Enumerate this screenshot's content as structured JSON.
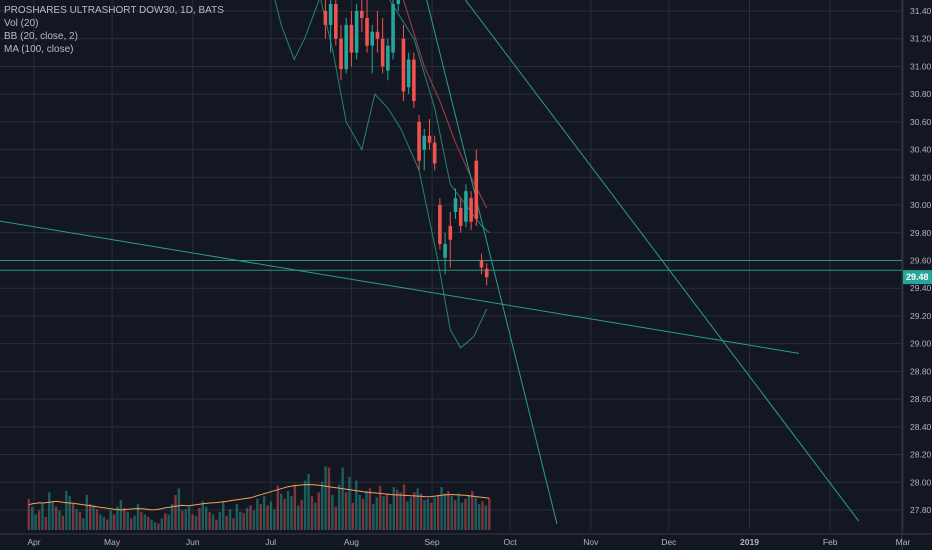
{
  "legend": {
    "title": "PROSHARES ULTRASHORT DOW30, 1D, BATS",
    "vol": "Vol (20)",
    "bb": "BB (20, close, 2)",
    "ma": "MA (100, close)"
  },
  "colors": {
    "background": "#131722",
    "grid": "#2a2e39",
    "up": "#26a69a",
    "down": "#ef5350",
    "bb_band": "#2a9d8f",
    "ma_line": "#8e3b46",
    "vol_ma": "#f5a35c",
    "trendline": "#2a9d8f",
    "price_label_bg": "#26a69a"
  },
  "chart_data": {
    "type": "candlestick",
    "y_ticks": [
      "31.40",
      "31.20",
      "31.00",
      "30.80",
      "30.60",
      "30.40",
      "30.20",
      "30.00",
      "29.80",
      "29.60",
      "29.40",
      "29.20",
      "29.00",
      "28.80",
      "28.60",
      "28.40",
      "28.20",
      "28.00",
      "27.80"
    ],
    "x_ticks": [
      {
        "label": "Apr",
        "date": "2018-04-01"
      },
      {
        "label": "May",
        "date": "2018-05-01"
      },
      {
        "label": "Jun",
        "date": "2018-06-01"
      },
      {
        "label": "Jul",
        "date": "2018-07-01"
      },
      {
        "label": "Aug",
        "date": "2018-08-01"
      },
      {
        "label": "Sep",
        "date": "2018-09-01"
      },
      {
        "label": "Oct",
        "date": "2018-10-01"
      },
      {
        "label": "Nov",
        "date": "2018-11-01"
      },
      {
        "label": "Dec",
        "date": "2018-12-01"
      },
      {
        "label": "2019",
        "date": "2019-01-01",
        "bold": true
      },
      {
        "label": "Feb",
        "date": "2019-02-01"
      },
      {
        "label": "Mar",
        "date": "2019-03-01"
      }
    ],
    "ylim": [
      27.7,
      31.5
    ],
    "last_price": {
      "value": 29.48,
      "label": "29.48"
    },
    "horizontal_levels": [
      29.6,
      29.53
    ],
    "trendlines": [
      {
        "from": {
          "date": "2018-03-01",
          "price": 29.94
        },
        "to": {
          "date": "2019-01-20",
          "price": 28.93
        }
      },
      {
        "from": {
          "date": "2018-08-29",
          "price": 31.55
        },
        "to": {
          "date": "2018-10-19",
          "price": 27.7
        }
      },
      {
        "from": {
          "date": "2018-09-11",
          "price": 31.55
        },
        "to": {
          "date": "2019-02-12",
          "price": 27.72
        }
      }
    ],
    "candles": [
      {
        "date": "2018-07-22",
        "open": 31.4,
        "high": 31.55,
        "low": 31.2,
        "close": 31.3
      },
      {
        "date": "2018-07-24",
        "open": 31.3,
        "high": 31.5,
        "low": 31.1,
        "close": 31.45
      },
      {
        "date": "2018-07-26",
        "open": 31.45,
        "high": 31.55,
        "low": 31.15,
        "close": 31.2
      },
      {
        "date": "2018-07-28",
        "open": 31.2,
        "high": 31.3,
        "low": 30.9,
        "close": 30.98
      },
      {
        "date": "2018-07-30",
        "open": 30.98,
        "high": 31.35,
        "low": 30.95,
        "close": 31.3
      },
      {
        "date": "2018-08-01",
        "open": 31.3,
        "high": 31.4,
        "low": 31.0,
        "close": 31.1
      },
      {
        "date": "2018-08-03",
        "open": 31.1,
        "high": 31.45,
        "low": 31.05,
        "close": 31.4
      },
      {
        "date": "2018-08-05",
        "open": 31.4,
        "high": 31.55,
        "low": 31.25,
        "close": 31.35
      },
      {
        "date": "2018-08-07",
        "open": 31.35,
        "high": 31.5,
        "low": 31.1,
        "close": 31.15
      },
      {
        "date": "2018-08-09",
        "open": 31.15,
        "high": 31.3,
        "low": 30.95,
        "close": 31.25
      },
      {
        "date": "2018-08-11",
        "open": 31.25,
        "high": 31.4,
        "low": 31.1,
        "close": 31.2
      },
      {
        "date": "2018-08-13",
        "open": 31.2,
        "high": 31.35,
        "low": 30.95,
        "close": 31.0
      },
      {
        "date": "2018-08-15",
        "open": 30.97,
        "high": 31.2,
        "low": 30.9,
        "close": 31.15
      },
      {
        "date": "2018-08-17",
        "open": 31.1,
        "high": 31.5,
        "low": 31.05,
        "close": 31.45
      },
      {
        "date": "2018-08-19",
        "open": 31.45,
        "high": 31.55,
        "low": 31.4,
        "close": 31.5
      },
      {
        "date": "2018-08-21",
        "open": 31.2,
        "high": 31.3,
        "low": 30.75,
        "close": 30.82
      },
      {
        "date": "2018-08-23",
        "open": 30.85,
        "high": 31.1,
        "low": 30.8,
        "close": 31.05
      },
      {
        "date": "2018-08-25",
        "open": 31.05,
        "high": 31.1,
        "low": 30.7,
        "close": 30.75
      },
      {
        "date": "2018-08-27",
        "open": 30.6,
        "high": 30.65,
        "low": 30.25,
        "close": 30.32
      },
      {
        "date": "2018-08-29",
        "open": 30.4,
        "high": 30.55,
        "low": 30.25,
        "close": 30.5
      },
      {
        "date": "2018-08-31",
        "open": 30.5,
        "high": 30.62,
        "low": 30.4,
        "close": 30.45
      },
      {
        "date": "2018-09-02",
        "open": 30.45,
        "high": 30.5,
        "low": 30.25,
        "close": 30.3
      },
      {
        "date": "2018-09-04",
        "open": 30.0,
        "high": 30.05,
        "low": 29.68,
        "close": 29.72
      },
      {
        "date": "2018-09-06",
        "open": 29.62,
        "high": 29.8,
        "low": 29.5,
        "close": 29.72
      },
      {
        "date": "2018-09-08",
        "open": 29.85,
        "high": 29.95,
        "low": 29.55,
        "close": 29.75
      },
      {
        "date": "2018-09-10",
        "open": 29.95,
        "high": 30.12,
        "low": 29.9,
        "close": 30.05
      },
      {
        "date": "2018-09-12",
        "open": 29.98,
        "high": 30.05,
        "low": 29.8,
        "close": 29.85
      },
      {
        "date": "2018-09-14",
        "open": 29.88,
        "high": 30.15,
        "low": 29.84,
        "close": 30.1
      },
      {
        "date": "2018-09-16",
        "open": 30.05,
        "high": 30.1,
        "low": 29.82,
        "close": 29.88
      },
      {
        "date": "2018-09-18",
        "open": 30.32,
        "high": 30.4,
        "low": 29.85,
        "close": 29.9
      },
      {
        "date": "2018-09-20",
        "open": 29.6,
        "high": 29.65,
        "low": 29.5,
        "close": 29.55
      },
      {
        "date": "2018-09-22",
        "open": 29.54,
        "high": 29.58,
        "low": 29.42,
        "close": 29.48
      }
    ],
    "volume": {
      "max": 100,
      "bars": [
        24,
        18,
        12,
        15,
        21,
        10,
        29,
        22,
        18,
        15,
        11,
        30,
        26,
        20,
        16,
        14,
        9,
        27,
        20,
        19,
        16,
        12,
        10,
        8,
        15,
        12,
        18,
        23,
        17,
        14,
        9,
        11,
        20,
        14,
        12,
        10,
        8,
        6,
        5,
        9,
        13,
        12,
        20,
        27,
        32,
        15,
        16,
        18,
        12,
        11,
        17,
        22,
        18,
        14,
        12,
        8,
        14,
        22,
        11,
        16,
        9,
        20,
        14,
        13,
        17,
        19,
        15,
        24,
        20,
        26,
        19,
        22,
        16,
        34,
        28,
        24,
        30,
        26,
        35,
        19,
        23,
        38,
        43,
        26,
        21,
        29,
        37,
        49,
        48,
        27,
        18,
        35,
        48,
        29,
        41,
        21,
        38,
        27,
        24,
        30,
        32,
        20,
        25,
        34,
        26,
        28,
        20,
        33,
        31,
        29,
        35,
        22,
        25,
        29,
        32,
        28,
        23,
        24,
        21,
        25,
        27,
        33,
        28,
        30,
        26,
        23,
        28,
        21,
        24,
        27,
        30,
        25,
        20,
        22,
        19,
        24
      ],
      "ma": [
        12.5,
        13.0,
        13.2,
        13.5,
        13.4,
        13.6,
        13.8,
        14.0,
        14.2,
        14.0,
        13.8,
        13.5,
        13.4,
        13.3,
        13.0,
        12.8,
        12.5,
        12.3,
        12.0,
        11.8,
        11.5,
        11.2,
        11.0,
        10.8,
        10.5,
        10.3,
        10.2,
        10.0,
        10.1,
        10.3,
        10.4,
        10.5,
        10.6,
        10.5,
        10.4,
        10.2,
        10.0,
        10.1,
        10.3,
        10.6,
        11.0,
        11.2,
        11.5,
        11.8,
        12.0,
        12.2,
        12.1,
        12.0,
        12.3,
        12.5,
        12.8,
        13.0,
        13.2,
        13.4,
        13.5,
        13.6,
        13.8,
        14.0,
        14.2,
        14.5,
        14.8,
        15.0,
        15.3,
        15.5,
        15.8,
        16.0,
        16.5,
        17.0,
        17.5,
        18.0,
        18.5,
        19.0,
        19.5,
        20.0,
        20.5,
        21.0,
        21.5,
        21.8,
        22.0,
        22.2,
        22.4,
        22.5,
        22.6,
        22.5,
        22.4,
        22.2,
        22.0,
        21.8,
        21.5,
        21.2,
        21.0,
        20.8,
        20.5,
        20.3,
        20.0,
        19.8,
        19.5,
        19.3,
        19.0,
        18.8,
        18.6,
        18.5,
        18.3,
        18.2,
        18.0,
        17.8,
        17.6,
        17.5,
        17.4,
        17.3,
        17.2,
        17.1,
        17.0,
        16.9,
        16.8,
        16.7,
        16.6,
        16.5,
        16.6,
        16.8,
        17.0,
        17.2,
        17.4,
        17.5,
        17.6,
        17.5,
        17.4,
        17.3,
        17.2,
        17.0,
        16.8,
        16.6,
        16.4,
        16.2,
        16.0,
        15.8
      ]
    }
  }
}
